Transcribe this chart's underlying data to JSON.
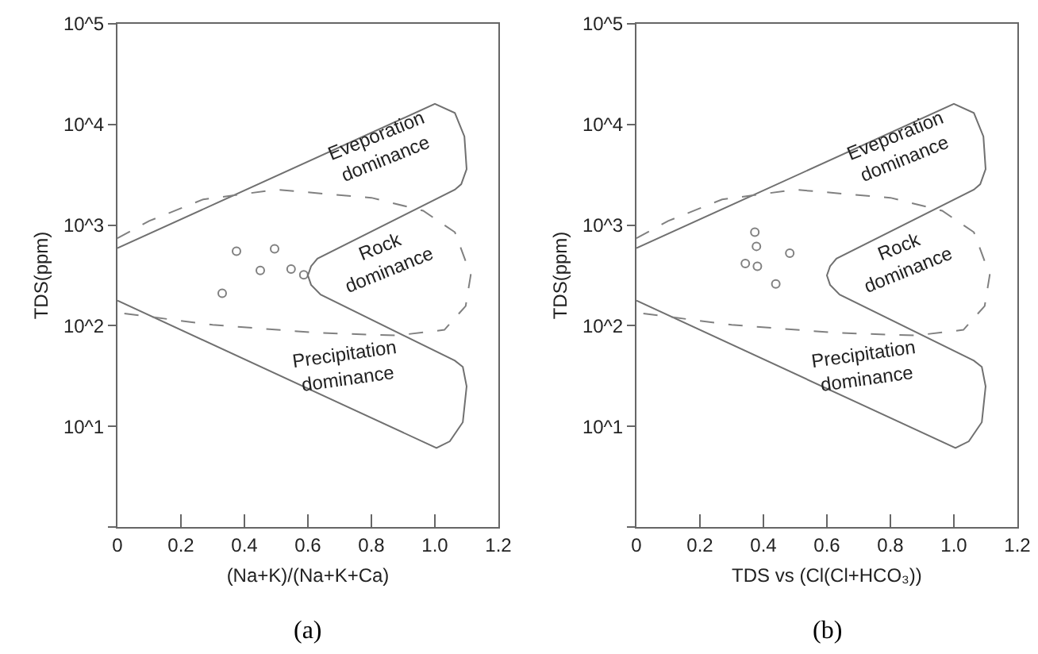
{
  "chart_data": [
    {
      "type": "scatter",
      "xlabel": "(Na+K)/(Na+K+Ca)",
      "ylabel": "TDS(ppm)",
      "log": "y",
      "grid": false,
      "xlim": [
        0,
        1.2
      ],
      "xticks": [
        0,
        0.2,
        0.4,
        0.6,
        0.8,
        {
          "value": 1,
          "label": "1.0"
        },
        1.2
      ],
      "ylim": [
        1,
        100000
      ],
      "yticks": [
        {
          "value": 1,
          "label": null
        },
        {
          "value": 10,
          "label": "10^1"
        },
        {
          "value": 100,
          "label": "10^2"
        },
        {
          "value": 1000,
          "label": "10^3"
        },
        {
          "value": 10000,
          "label": "10^4"
        },
        {
          "value": 100000,
          "label": "10^5"
        }
      ],
      "series": [
        {
          "marker": "circle",
          "color": "#808080",
          "x": [
            0.33,
            0.375,
            0.45,
            0.495,
            0.547,
            0.587
          ],
          "values": [
            210,
            550,
            355,
            580,
            365,
            320
          ]
        },
        {
          "type": "line",
          "marker": "none",
          "color": "#707070",
          "line_style": "solid",
          "x": [
            0,
            1.0,
            1.063,
            1.093,
            1.1,
            1.083,
            1.063,
            0.63,
            0.61,
            0.6,
            0.61,
            0.64,
            1.063,
            1.088,
            1.1,
            1.088,
            1.047,
            1.005,
            0
          ],
          "values": [
            590,
            16000,
            13000,
            7600,
            3600,
            2550,
            2250,
            465,
            390,
            316,
            255,
            204,
            45,
            39,
            25,
            11,
            7.1,
            6.1,
            178
          ]
        },
        {
          "type": "line",
          "marker": "none",
          "color": "#808080",
          "line_style": "dashed",
          "x": [
            0,
            0.1,
            0.27,
            0.5,
            0.8,
            0.963,
            1.063,
            1.113,
            1.097,
            1.03,
            0.88,
            0.63,
            0.3,
            0
          ],
          "values": [
            740,
            1100,
            1800,
            2250,
            1870,
            1390,
            850,
            320,
            157,
            91,
            80,
            85,
            102,
            135
          ]
        }
      ],
      "annotations": [
        "Eveporation dominance",
        "Rock dominance",
        "Precipitation dominance",
        "(a)"
      ]
    },
    {
      "type": "scatter",
      "xlabel": "TDS vs (Cl(Cl+HCO₃))",
      "ylabel": "TDS(ppm)",
      "log": "y",
      "grid": false,
      "xlim": [
        0,
        1.2
      ],
      "xticks": [
        0,
        0.2,
        0.4,
        0.6,
        0.8,
        {
          "value": 1,
          "label": "1.0"
        },
        1.2
      ],
      "ylim": [
        1,
        100000
      ],
      "yticks": [
        {
          "value": 1,
          "label": null
        },
        {
          "value": 10,
          "label": "10^1"
        },
        {
          "value": 100,
          "label": "10^2"
        },
        {
          "value": 1000,
          "label": "10^3"
        },
        {
          "value": 10000,
          "label": "10^4"
        },
        {
          "value": 100000,
          "label": "10^5"
        }
      ],
      "series": [
        {
          "marker": "circle",
          "color": "#808080",
          "x": [
            0.373,
            0.378,
            0.343,
            0.381,
            0.483,
            0.439
          ],
          "values": [
            850,
            615,
            415,
            390,
            525,
            260
          ]
        },
        {
          "type": "line",
          "marker": "none",
          "color": "#707070",
          "line_style": "solid",
          "x": [
            0,
            1.0,
            1.063,
            1.093,
            1.1,
            1.083,
            1.063,
            0.63,
            0.61,
            0.6,
            0.61,
            0.64,
            1.063,
            1.088,
            1.1,
            1.088,
            1.047,
            1.005,
            0
          ],
          "values": [
            590,
            16000,
            13000,
            7600,
            3600,
            2550,
            2250,
            465,
            390,
            316,
            255,
            204,
            45,
            39,
            25,
            11,
            7.1,
            6.1,
            178
          ]
        },
        {
          "type": "line",
          "marker": "none",
          "color": "#808080",
          "line_style": "dashed",
          "x": [
            0,
            0.1,
            0.27,
            0.5,
            0.8,
            0.963,
            1.063,
            1.113,
            1.097,
            1.03,
            0.88,
            0.63,
            0.3,
            0
          ],
          "values": [
            740,
            1100,
            1800,
            2250,
            1870,
            1390,
            850,
            320,
            157,
            91,
            80,
            85,
            102,
            135
          ]
        }
      ],
      "annotations": [
        "Eveporation dominance",
        "Rock dominance",
        "Precipitation dominance",
        "(b)"
      ]
    }
  ]
}
